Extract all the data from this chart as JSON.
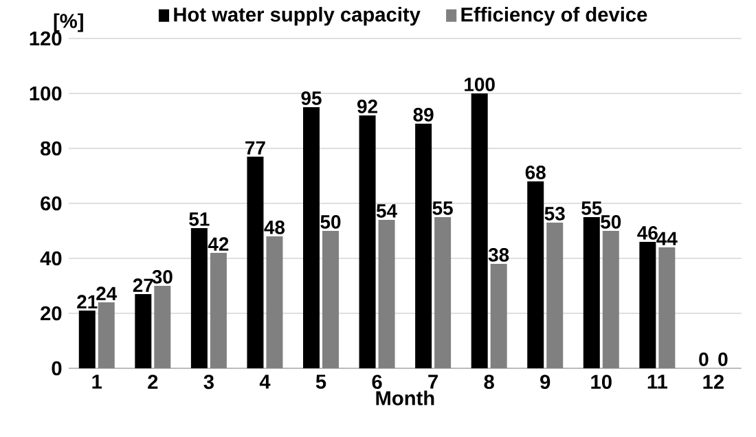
{
  "chart_data": {
    "type": "bar",
    "xlabel": "Month",
    "ylabel": "[%]",
    "categories": [
      "1",
      "2",
      "3",
      "4",
      "5",
      "6",
      "7",
      "8",
      "9",
      "10",
      "11",
      "12"
    ],
    "series": [
      {
        "name": "Hot water supply capacity",
        "color": "#000000",
        "values": [
          21,
          27,
          51,
          77,
          95,
          92,
          89,
          100,
          68,
          55,
          46,
          0
        ]
      },
      {
        "name": "Efficiency of device",
        "color": "#808080",
        "values": [
          24,
          30,
          42,
          48,
          50,
          54,
          55,
          38,
          53,
          50,
          44,
          0
        ]
      }
    ],
    "ylim": [
      0,
      120
    ],
    "yticks": [
      0,
      20,
      40,
      60,
      80,
      100,
      120
    ],
    "grid": "y",
    "legend": "top",
    "data_labels": true
  }
}
